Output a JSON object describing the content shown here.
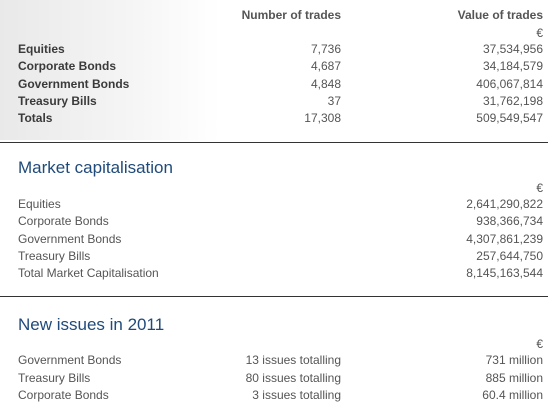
{
  "trades": {
    "col_number": "Number of trades",
    "col_value": "Value of trades",
    "currency": "€",
    "rows": [
      {
        "label": "Equities",
        "number": "7,736",
        "value": "37,534,956"
      },
      {
        "label": "Corporate Bonds",
        "number": "4,687",
        "value": "34,184,579"
      },
      {
        "label": "Government Bonds",
        "number": "4,848",
        "value": "406,067,814"
      },
      {
        "label": "Treasury Bills",
        "number": "37",
        "value": "31,762,198"
      },
      {
        "label": "Totals",
        "number": "17,308",
        "value": "509,549,547"
      }
    ]
  },
  "market_cap": {
    "title": "Market capitalisation",
    "currency": "€",
    "rows": [
      {
        "label": "Equities",
        "value": "2,641,290,822"
      },
      {
        "label": "Corporate Bonds",
        "value": "938,366,734"
      },
      {
        "label": "Government Bonds",
        "value": "4,307,861,239"
      },
      {
        "label": "Treasury Bills",
        "value": "257,644,750"
      },
      {
        "label": "Total Market Capitalisation",
        "value": "8,145,163,544"
      }
    ]
  },
  "new_issues": {
    "title": "New issues in 2011",
    "currency": "€",
    "rows": [
      {
        "label": "Government Bonds",
        "issues": "13 issues totalling",
        "value": "731 million"
      },
      {
        "label": "Treasury Bills",
        "issues": "80 issues totalling",
        "value": "885 million"
      },
      {
        "label": "Corporate Bonds",
        "issues": "3 issues totalling",
        "value": "60.4 million"
      }
    ]
  },
  "colors": {
    "title_blue": "#1f4a7a",
    "text_gray": "#555555",
    "divider": "#333333"
  }
}
